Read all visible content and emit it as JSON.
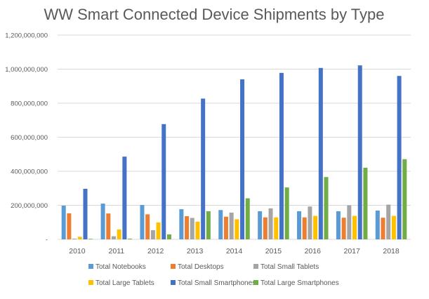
{
  "chart_data": {
    "type": "bar",
    "title": "WW Smart Connected Device Shipments by Type",
    "xlabel": "",
    "ylabel": "",
    "categories": [
      "2010",
      "2011",
      "2012",
      "2013",
      "2014",
      "2015",
      "2016",
      "2017",
      "2018"
    ],
    "ylim": [
      0,
      1200000000
    ],
    "yticks": [
      0,
      200000000,
      400000000,
      600000000,
      800000000,
      1000000000,
      1200000000
    ],
    "ytick_labels": [
      "-",
      "200,000,000",
      "400,000,000",
      "600,000,000",
      "800,000,000",
      "1,000,000,000",
      "1,200,000,000"
    ],
    "grid": true,
    "legend_position": "bottom",
    "series": [
      {
        "name": "Total Notebooks",
        "color": "#5b9bd5",
        "values": [
          198000000,
          210000000,
          202000000,
          177000000,
          172000000,
          165000000,
          165000000,
          165000000,
          169000000
        ]
      },
      {
        "name": "Total Desktops",
        "color": "#ed7d31",
        "values": [
          153000000,
          152000000,
          147000000,
          136000000,
          133000000,
          129000000,
          129000000,
          127000000,
          127000000
        ]
      },
      {
        "name": "Total Small Tablets",
        "color": "#a5a5a5",
        "values": [
          4000000,
          18000000,
          54000000,
          126000000,
          157000000,
          182000000,
          193000000,
          200000000,
          204000000
        ]
      },
      {
        "name": "Total Large Tablets",
        "color": "#ffc000",
        "values": [
          15000000,
          58000000,
          99000000,
          104000000,
          118000000,
          129000000,
          138000000,
          138000000,
          138000000
        ]
      },
      {
        "name": "Total Small Smartphones",
        "color": "#4472c4",
        "values": [
          297000000,
          486000000,
          677000000,
          827000000,
          940000000,
          978000000,
          1007000000,
          1022000000,
          960000000
        ]
      },
      {
        "name": "Total Large Smartphones",
        "color": "#70ad47",
        "values": [
          3000000,
          4000000,
          29000000,
          165000000,
          241000000,
          305000000,
          366000000,
          421000000,
          471000000
        ]
      }
    ]
  }
}
